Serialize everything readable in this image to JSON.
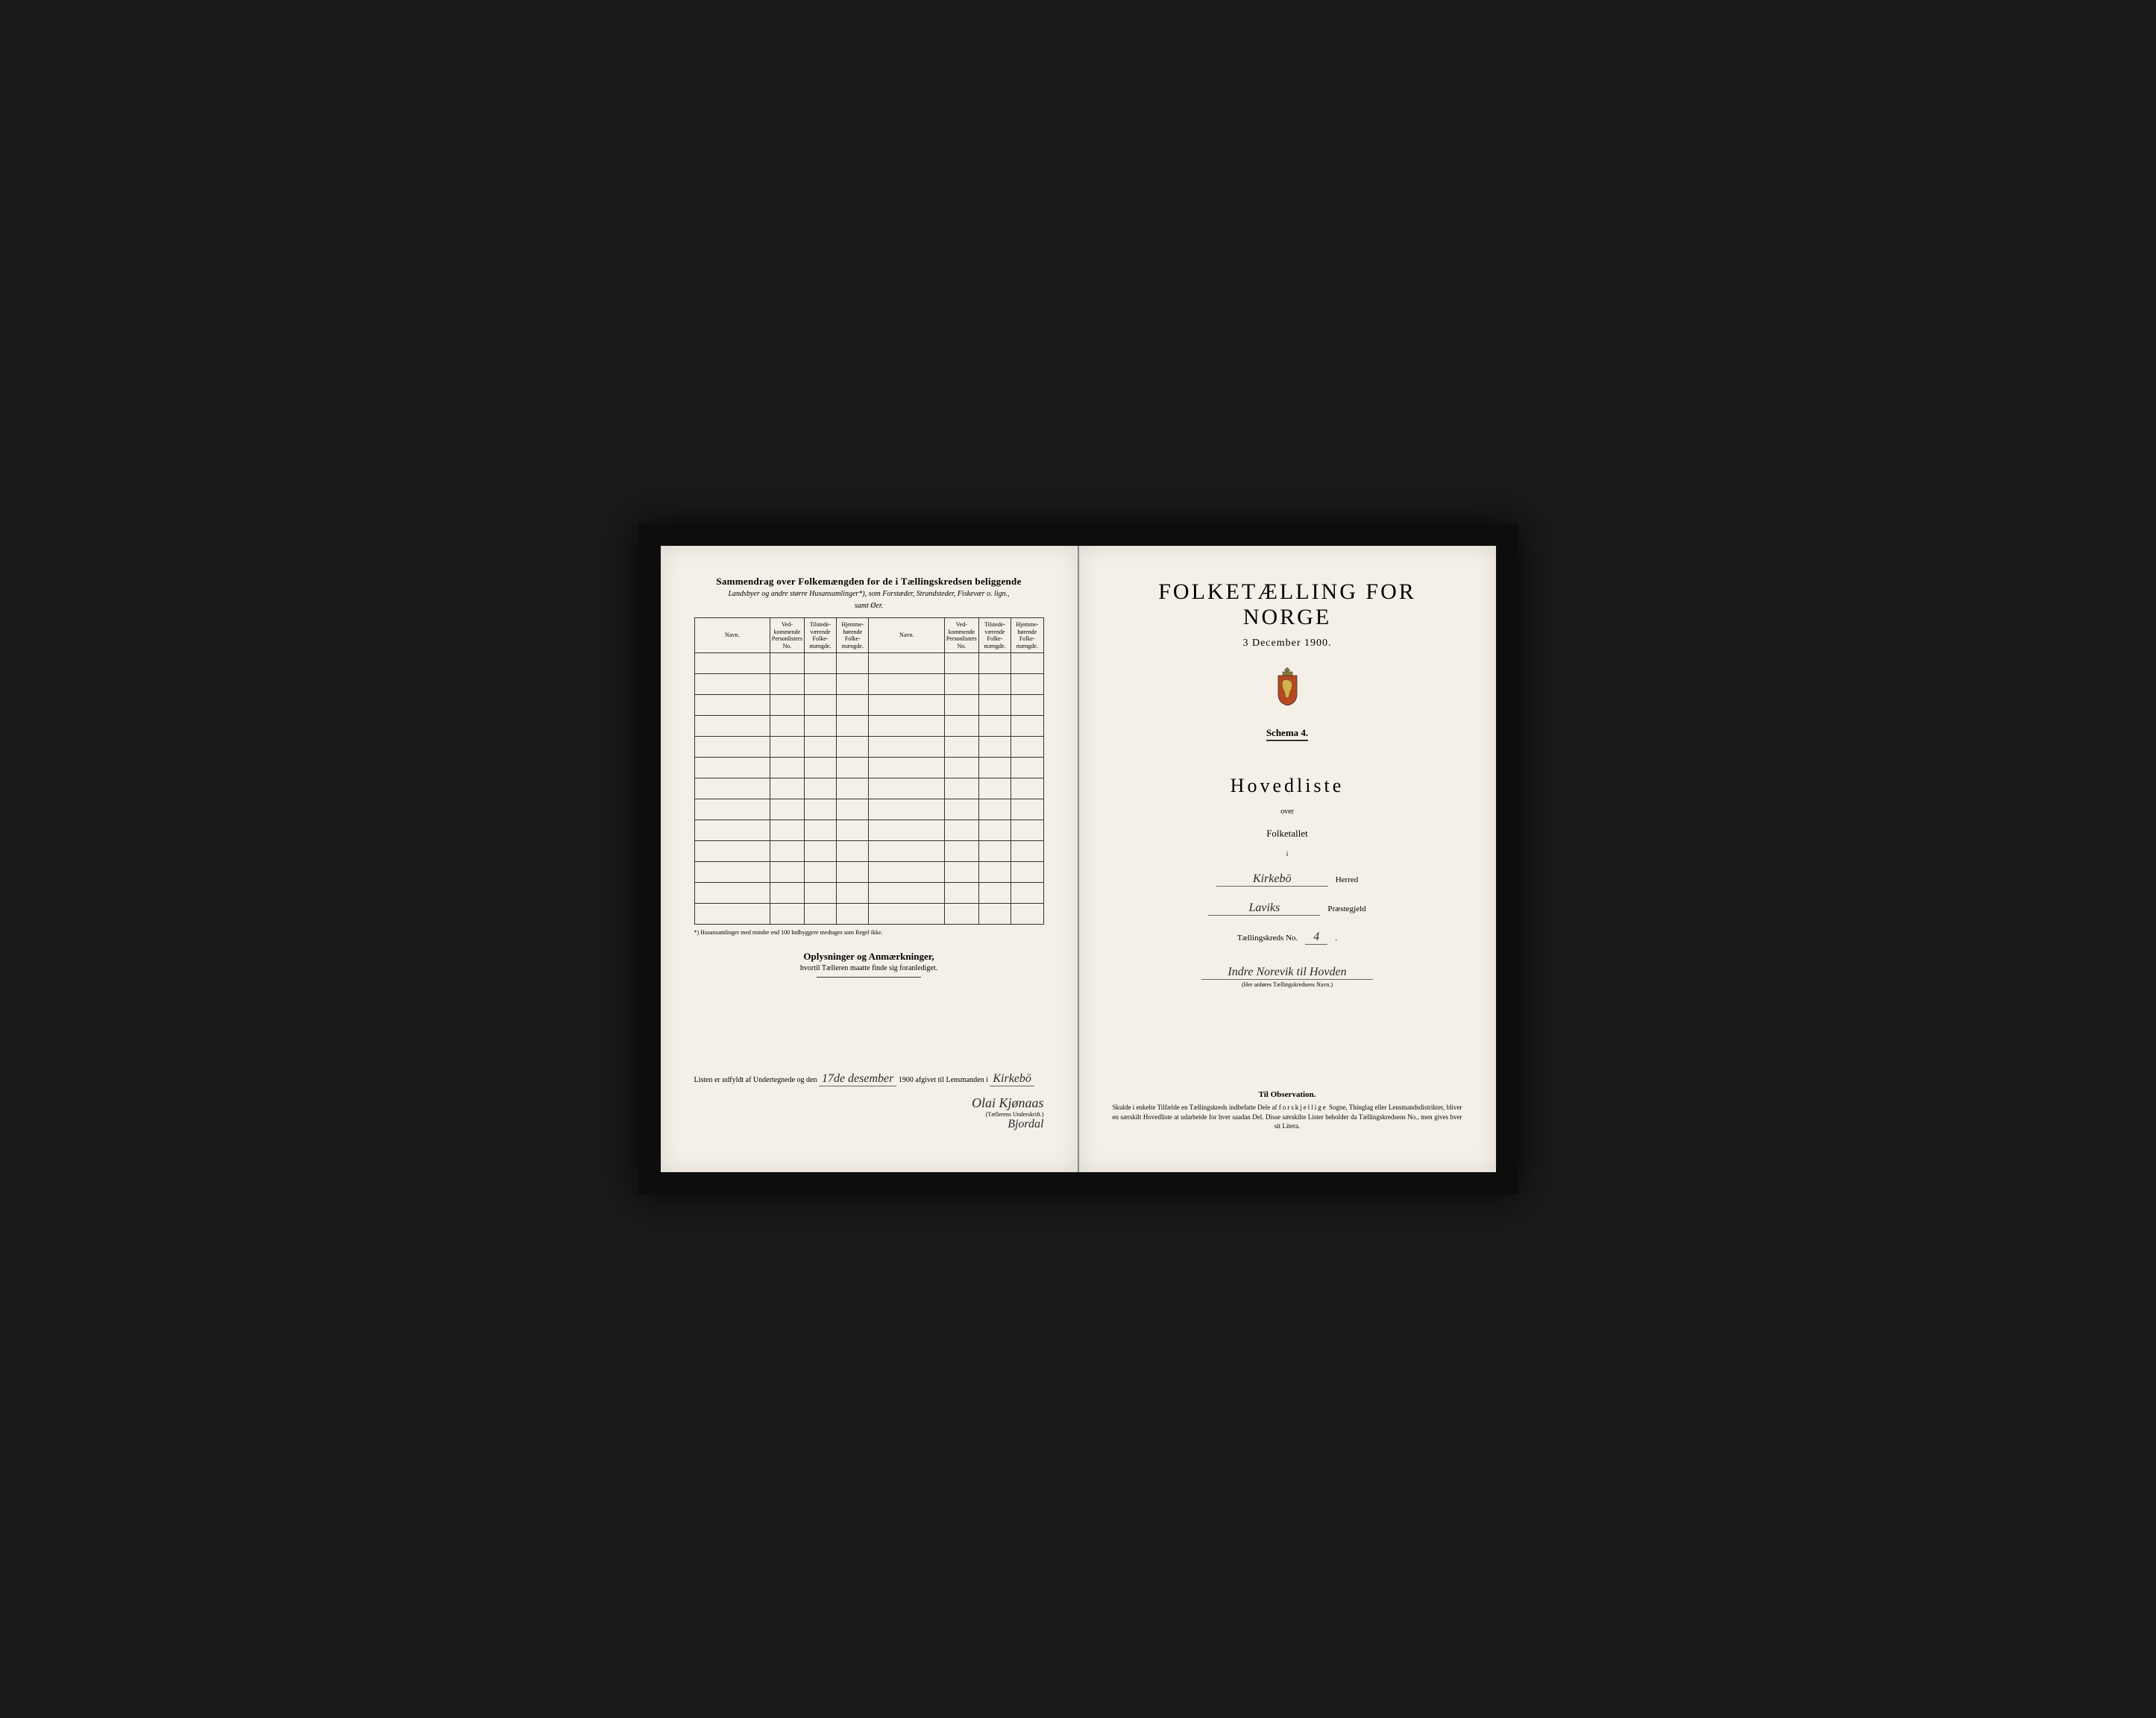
{
  "layout": {
    "page_bg": "#f4f0e8",
    "frame_bg": "#1a1a1a",
    "ink": "#2a2a2a"
  },
  "left_page": {
    "summary_title": "Sammendrag over Folkemængden for de i Tællingskredsen beliggende",
    "summary_subtitle_1": "Landsbyer og andre større Husansamlinger*), som Forstæder, Strandsteder, Fiskevær o. lign.,",
    "summary_subtitle_2": "samt Øer.",
    "table_headers": {
      "navn": "Navn.",
      "vedk": "Ved-kommende Personlisters No.",
      "tilst": "Tilstede-værende Folke-mængde.",
      "hjemme": "Hjemme-hørende Folke-mængde."
    },
    "row_count": 13,
    "footnote": "*) Husansamlinger med mindre end 100 Indbyggere medtages som Regel ikke.",
    "oplysninger_title": "Oplysninger og Anmærkninger,",
    "oplysninger_sub": "hvortil Tælleren maatte finde sig foranlediget.",
    "listen_prefix": "Listen er udfyldt af Undertegnede og den",
    "listen_date": "17de desember",
    "listen_year": "1900",
    "listen_mid": "afgivet til Lensmanden i",
    "listen_place": "Kirkebö",
    "signature_label": "(Tællerens Underskrift.)",
    "signature_name": "Olai Kjønaas",
    "signature_place": "Bjordal"
  },
  "right_page": {
    "main_title": "FOLKETÆLLING FOR NORGE",
    "date": "3 December 1900.",
    "schema": "Schema 4.",
    "hovedliste": "Hovedliste",
    "over": "over",
    "folketallet": "Folketallet",
    "i": "i",
    "herred_value": "Kirkebö",
    "herred_label": "Herred",
    "praestegjeld_value": "Laviks",
    "praestegjeld_label": "Præstegjeld",
    "kreds_label": "Tællingskreds No.",
    "kreds_no": "4",
    "kreds_name": "Indre Norevik til Hovden",
    "kreds_caption": "(Her anføres Tællingskredsens Navn.)",
    "obs_title": "Til Observation.",
    "obs_text": "Skulde i enkelte Tilfælde en Tællingskreds indbefatte Dele af forskjellige Sogne, Thinglag eller Lensmandsdistrikter, bliver en særskilt Hovedliste at udarbeide for hver saadan Del. Disse særskilte Lister beholder da Tællingskredsens No., men gives hver sit Litera."
  }
}
